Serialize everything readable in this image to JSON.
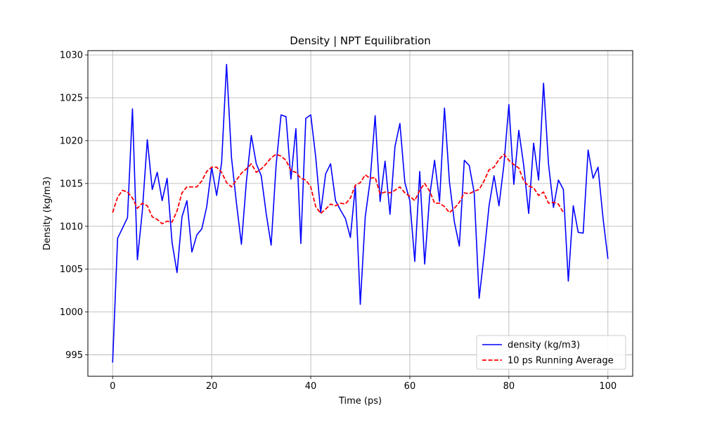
{
  "chart_data": {
    "type": "line",
    "title": "Density | NPT Equilibration",
    "xlabel": "Time (ps)",
    "ylabel": "Density (kg/m3)",
    "xlim": [
      -5,
      105
    ],
    "ylim": [
      992.5,
      1030.5
    ],
    "xticks": [
      0,
      20,
      40,
      60,
      80,
      100
    ],
    "yticks": [
      995,
      1000,
      1005,
      1010,
      1015,
      1020,
      1025,
      1030
    ],
    "grid": true,
    "legend_position": "lower-right",
    "series": [
      {
        "name": "density (kg/m3)",
        "color": "#0000ff",
        "style": "solid",
        "x": [
          0,
          1,
          2,
          3,
          4,
          5,
          6,
          7,
          8,
          9,
          10,
          11,
          12,
          13,
          14,
          15,
          16,
          17,
          18,
          19,
          20,
          21,
          22,
          23,
          24,
          25,
          26,
          27,
          28,
          29,
          30,
          31,
          32,
          33,
          34,
          35,
          36,
          37,
          38,
          39,
          40,
          41,
          42,
          43,
          44,
          45,
          46,
          47,
          48,
          49,
          50,
          51,
          52,
          53,
          54,
          55,
          56,
          57,
          58,
          59,
          60,
          61,
          62,
          63,
          64,
          65,
          66,
          67,
          68,
          69,
          70,
          71,
          72,
          73,
          74,
          75,
          76,
          77,
          78,
          79,
          80,
          81,
          82,
          83,
          84,
          85,
          86,
          87,
          88,
          89,
          90,
          91,
          92,
          93,
          94,
          95,
          96,
          97,
          98,
          99,
          100
        ],
        "y": [
          994.1,
          1008.6,
          1009.8,
          1011.0,
          1023.7,
          1006.1,
          1011.8,
          1020.1,
          1014.3,
          1016.3,
          1013.0,
          1015.6,
          1008.1,
          1004.6,
          1011.1,
          1013.0,
          1007.0,
          1009.0,
          1009.7,
          1012.3,
          1016.9,
          1013.6,
          1017.4,
          1028.9,
          1018.0,
          1012.7,
          1007.9,
          1015.2,
          1020.6,
          1017.3,
          1015.9,
          1011.5,
          1007.8,
          1017.1,
          1023.0,
          1022.8,
          1015.5,
          1021.4,
          1008.0,
          1022.6,
          1023.0,
          1018.1,
          1011.6,
          1016.1,
          1017.3,
          1013.0,
          1011.9,
          1010.9,
          1008.7,
          1014.7,
          1000.9,
          1011.1,
          1015.4,
          1022.9,
          1012.9,
          1017.6,
          1011.4,
          1019.3,
          1022.0,
          1015.1,
          1013.0,
          1005.9,
          1016.4,
          1005.6,
          1013.5,
          1017.7,
          1012.9,
          1023.8,
          1015.2,
          1010.5,
          1007.7,
          1017.7,
          1017.1,
          1013.9,
          1001.6,
          1006.7,
          1012.4,
          1015.9,
          1012.4,
          1017.2,
          1024.2,
          1014.9,
          1021.2,
          1017.1,
          1011.5,
          1019.7,
          1015.4,
          1026.7,
          1017.3,
          1012.2,
          1015.4,
          1014.3,
          1003.6,
          1012.4,
          1009.3,
          1009.2,
          1018.9,
          1015.6,
          1016.9,
          1011.0,
          1006.2
        ]
      },
      {
        "name": "10 ps Running Average",
        "color": "#ff0000",
        "style": "dashed",
        "x": [
          0,
          1,
          2,
          3,
          4,
          5,
          6,
          7,
          8,
          9,
          10,
          11,
          12,
          13,
          14,
          15,
          16,
          17,
          18,
          19,
          20,
          21,
          22,
          23,
          24,
          25,
          26,
          27,
          28,
          29,
          30,
          31,
          32,
          33,
          34,
          35,
          36,
          37,
          38,
          39,
          40,
          41,
          42,
          43,
          44,
          45,
          46,
          47,
          48,
          49,
          50,
          51,
          52,
          53,
          54,
          55,
          56,
          57,
          58,
          59,
          60,
          61,
          62,
          63,
          64,
          65,
          66,
          67,
          68,
          69,
          70,
          71,
          72,
          73,
          74,
          75,
          76,
          77,
          78,
          79,
          80,
          81,
          82,
          83,
          84,
          85,
          86,
          87,
          88,
          89,
          90,
          91
        ],
        "y": [
          1011.6,
          1013.4,
          1014.2,
          1014.0,
          1013.3,
          1012.1,
          1012.7,
          1012.4,
          1011.1,
          1010.8,
          1010.3,
          1010.6,
          1010.5,
          1011.8,
          1013.9,
          1014.6,
          1014.6,
          1014.6,
          1015.3,
          1016.4,
          1016.9,
          1016.9,
          1016.3,
          1015.1,
          1014.6,
          1015.4,
          1016.2,
          1016.7,
          1017.3,
          1016.3,
          1016.7,
          1017.3,
          1018.0,
          1018.4,
          1018.2,
          1017.7,
          1016.5,
          1016.3,
          1015.6,
          1015.4,
          1014.6,
          1012.3,
          1011.5,
          1012.0,
          1012.6,
          1012.4,
          1012.7,
          1012.6,
          1013.3,
          1014.8,
          1015.1,
          1016.0,
          1015.6,
          1015.7,
          1013.8,
          1014.0,
          1013.9,
          1014.2,
          1014.6,
          1013.9,
          1013.5,
          1013.0,
          1014.2,
          1015.0,
          1014.1,
          1012.7,
          1012.7,
          1012.3,
          1011.6,
          1012.1,
          1012.8,
          1013.9,
          1013.8,
          1014.1,
          1014.3,
          1015.3,
          1016.6,
          1016.9,
          1017.8,
          1018.4,
          1017.7,
          1017.2,
          1016.8,
          1015.3,
          1014.7,
          1014.5,
          1013.6,
          1014.0,
          1012.7,
          1012.8,
          1012.6,
          1011.6
        ]
      }
    ]
  }
}
